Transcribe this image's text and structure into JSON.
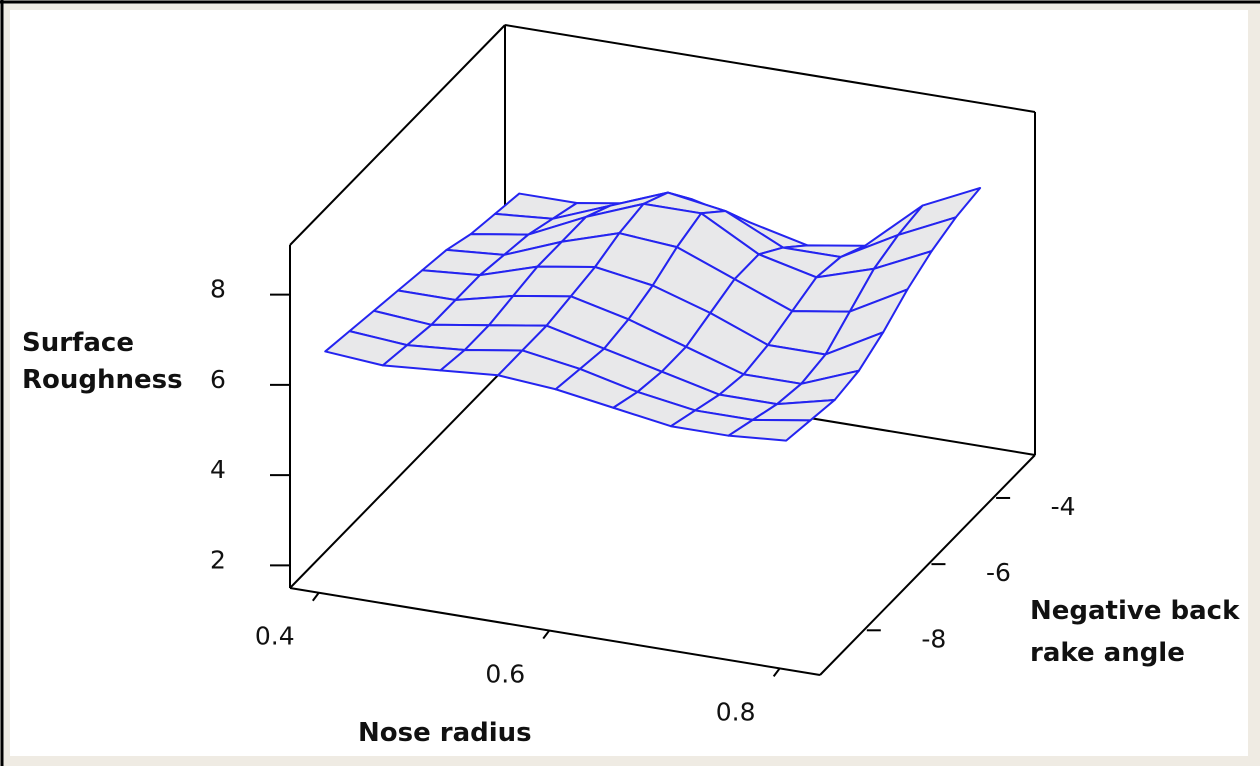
{
  "chart_data": {
    "type": "surface",
    "x_label": "Nose radius",
    "y_label": "Negative back rake angle",
    "z_label": "Surface Roughness",
    "x": [
      0.4,
      0.45,
      0.5,
      0.55,
      0.6,
      0.65,
      0.7,
      0.75,
      0.8
    ],
    "y": [
      -9,
      -8.25,
      -7.5,
      -6.75,
      -6,
      -5.25,
      -4.5,
      -3.75,
      -3
    ],
    "z": [
      [
        6.7,
        6.6,
        6.7,
        6.8,
        6.7,
        6.5,
        6.3,
        6.3,
        6.4
      ],
      [
        6.6,
        6.5,
        6.6,
        6.8,
        6.6,
        6.3,
        6.1,
        6.1,
        6.3
      ],
      [
        6.5,
        6.4,
        6.6,
        6.8,
        6.5,
        6.2,
        5.9,
        5.9,
        6.2
      ],
      [
        6.4,
        6.4,
        6.7,
        6.9,
        6.6,
        6.2,
        5.8,
        5.8,
        6.3
      ],
      [
        6.3,
        6.4,
        6.8,
        7.0,
        6.8,
        6.4,
        5.9,
        5.9,
        6.6
      ],
      [
        6.2,
        6.3,
        6.8,
        7.2,
        7.1,
        6.6,
        6.1,
        6.3,
        7.0
      ],
      [
        6.0,
        6.2,
        6.8,
        7.3,
        7.3,
        6.6,
        6.3,
        6.7,
        7.3
      ],
      [
        5.9,
        6.0,
        6.5,
        7.0,
        6.8,
        6.2,
        6.2,
        6.9,
        7.5
      ],
      [
        5.8,
        5.8,
        6.0,
        6.3,
        6.0,
        5.7,
        5.9,
        7.0,
        7.6
      ]
    ],
    "xlim": [
      0.375,
      0.835
    ],
    "ylim": [
      -9.2,
      -2.55
    ],
    "zlim": [
      1.5,
      9.1
    ],
    "xticks": [
      0.4,
      0.6,
      0.8
    ],
    "yticks": [
      -8,
      -6,
      -4
    ],
    "zticks": [
      2,
      4,
      6,
      8
    ],
    "color": "#2424f0",
    "surface_fill": "#e8e8ea"
  }
}
